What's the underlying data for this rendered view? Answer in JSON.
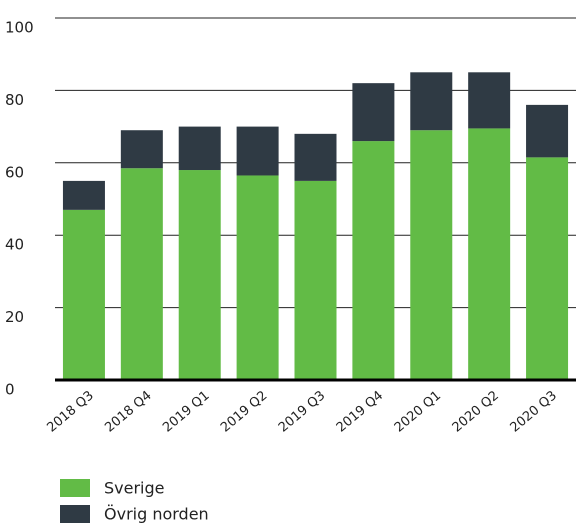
{
  "chart_data": {
    "type": "stacked_bar",
    "categories": [
      "2018 Q3",
      "2018 Q4",
      "2019 Q1",
      "2019 Q2",
      "2019 Q3",
      "2019 Q4",
      "2020 Q1",
      "2020 Q2",
      "2020 Q3"
    ],
    "series": [
      {
        "name": "Sverige",
        "color": "#62bb46",
        "values": [
          47,
          58.5,
          58,
          56.5,
          55,
          66,
          69,
          69.5,
          61.5
        ]
      },
      {
        "name": "Övrig norden",
        "color": "#2f3a44",
        "values": [
          8,
          10.5,
          12,
          13.5,
          13,
          16,
          16,
          15.5,
          14.5
        ]
      }
    ],
    "ylim": [
      0,
      100
    ],
    "yticks": [
      0,
      20,
      40,
      60,
      80,
      100
    ],
    "grid": true
  }
}
